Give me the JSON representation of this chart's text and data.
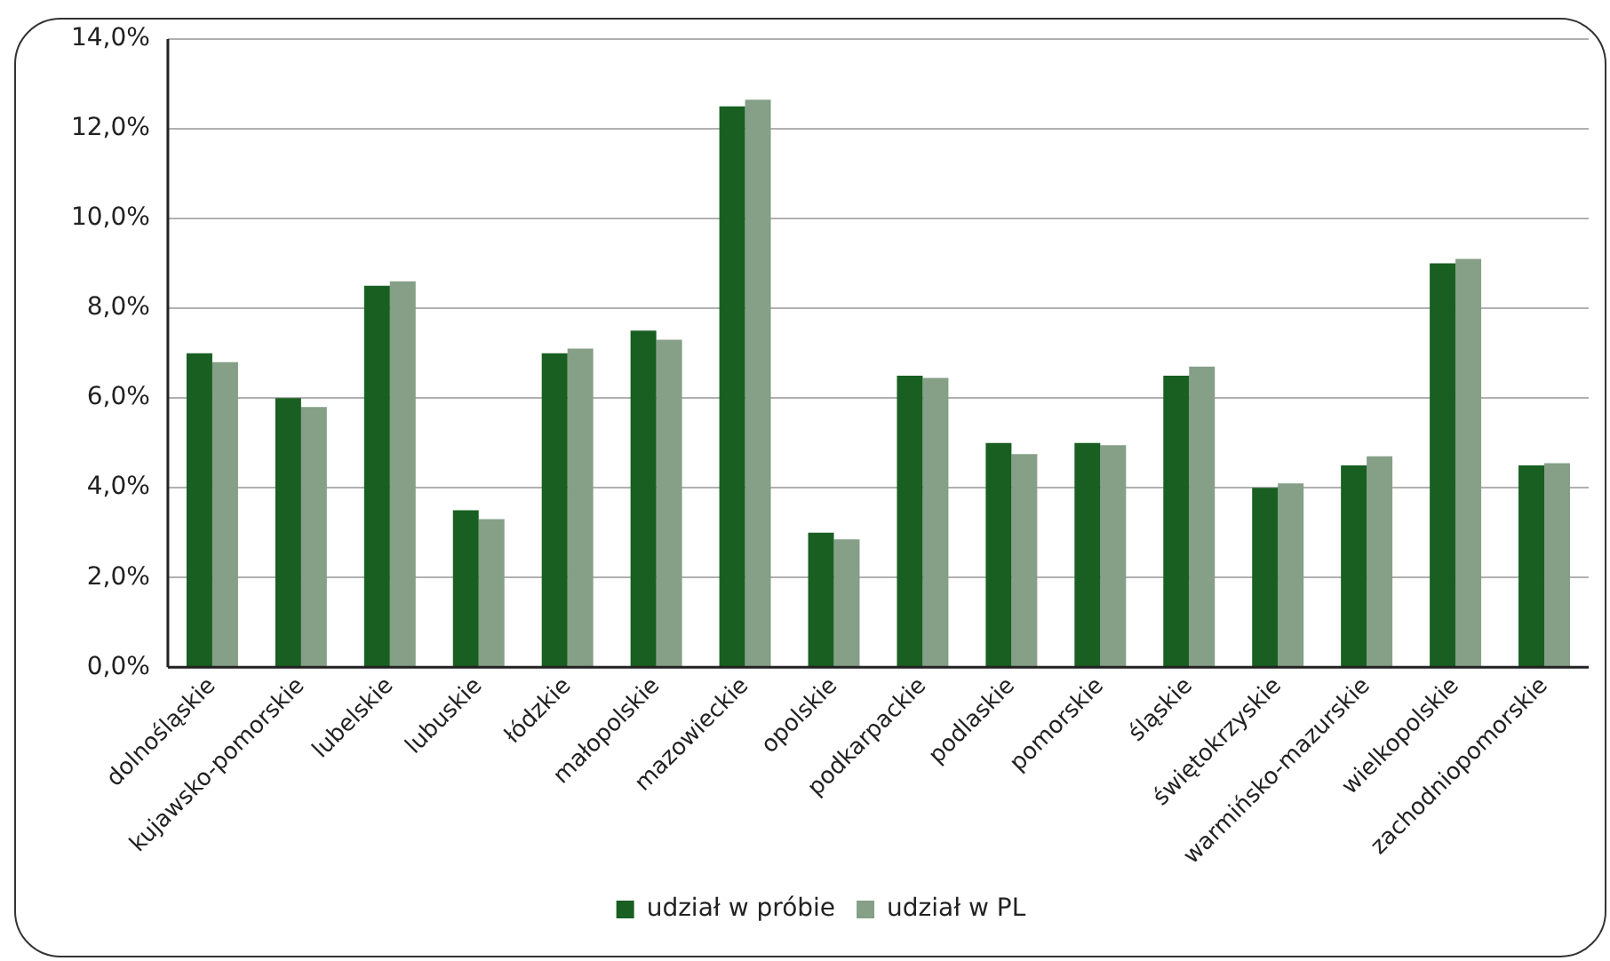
{
  "chart_data": {
    "type": "bar",
    "categories": [
      "dolnośląskie",
      "kujawsko-pomorskie",
      "lubelskie",
      "lubuskie",
      "łódzkie",
      "małopolskie",
      "mazowieckie",
      "opolskie",
      "podkarpackie",
      "podlaskie",
      "pomorskie",
      "śląskie",
      "świętokrzyskie",
      "warmińsko-mazurskie",
      "wielkopolskie",
      "zachodniopomorskie"
    ],
    "series": [
      {
        "name": "udział w próbie",
        "color": "#185f21",
        "values": [
          7.0,
          6.0,
          8.5,
          3.5,
          7.0,
          7.5,
          12.5,
          3.0,
          6.5,
          5.0,
          5.0,
          6.5,
          4.0,
          4.5,
          9.0,
          4.5
        ]
      },
      {
        "name": "udział w PL",
        "color": "#869f87",
        "values": [
          6.8,
          5.8,
          8.6,
          3.3,
          7.1,
          7.3,
          12.65,
          2.85,
          6.45,
          4.75,
          4.95,
          6.7,
          4.1,
          4.7,
          9.1,
          4.55
        ]
      }
    ],
    "ylim": [
      0,
      14
    ],
    "yticks": [
      {
        "value": 0,
        "label": "0,0%"
      },
      {
        "value": 2,
        "label": "2,0%"
      },
      {
        "value": 4,
        "label": "4,0%"
      },
      {
        "value": 6,
        "label": "6,0%"
      },
      {
        "value": 8,
        "label": "8,0%"
      },
      {
        "value": 10,
        "label": "10,0%"
      },
      {
        "value": 12,
        "label": "12,0%"
      },
      {
        "value": 14,
        "label": "14,0%"
      }
    ],
    "grid": "y",
    "legend": "bottom"
  }
}
